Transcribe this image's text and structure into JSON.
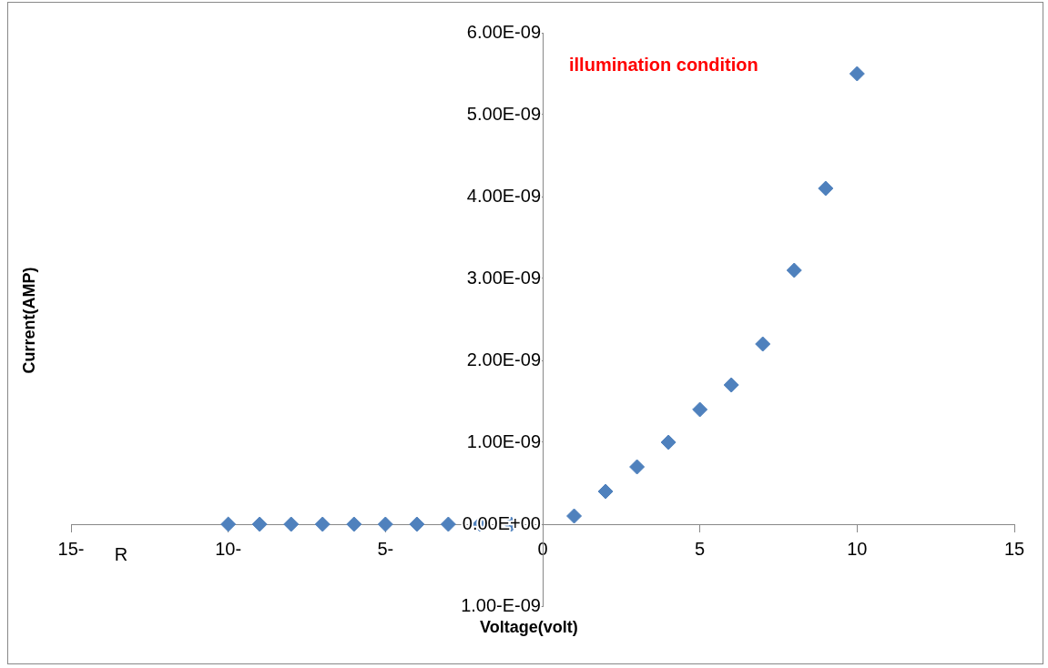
{
  "chart_data": {
    "type": "scatter",
    "title": "illumination condition",
    "xlabel": "Voltage(volt)",
    "ylabel": "Current(AMP)",
    "annotations": [
      "R"
    ],
    "x": [
      -10,
      -9,
      -8,
      -7,
      -6,
      -5,
      -4,
      -3,
      -2,
      -1,
      1,
      2,
      3,
      4,
      5,
      6,
      7,
      8,
      9,
      10
    ],
    "series": [
      {
        "color": "#4f81bd",
        "values": [
          0,
          0,
          0,
          0,
          0,
          0,
          0,
          0,
          0,
          0,
          1e-10,
          4e-10,
          7e-10,
          1e-09,
          1.4e-09,
          1.7e-09,
          2.2e-09,
          3.1e-09,
          4.1e-09,
          5.5e-09
        ]
      }
    ],
    "xlim": [
      -15,
      15
    ],
    "xticks": [
      {
        "value": -15,
        "label": "15-"
      },
      {
        "value": -10,
        "label": "10-"
      },
      {
        "value": -5,
        "label": "5-"
      },
      0,
      5,
      10,
      15
    ],
    "ylim": [
      -1e-09,
      6e-09
    ],
    "yticks": [
      {
        "value": -1e-09,
        "label": "1.00-E-09"
      },
      {
        "value": 0,
        "label": "0.00E+00"
      },
      {
        "value": 1e-09,
        "label": "1.00E-09"
      },
      {
        "value": 2e-09,
        "label": "2.00E-09"
      },
      {
        "value": 3e-09,
        "label": "3.00E-09"
      },
      {
        "value": 4e-09,
        "label": "4.00E-09"
      },
      {
        "value": 5e-09,
        "label": "5.00E-09"
      },
      {
        "value": 6e-09,
        "label": "6.00E-09"
      }
    ],
    "grid": false,
    "legend": false,
    "marker": "diamond"
  }
}
